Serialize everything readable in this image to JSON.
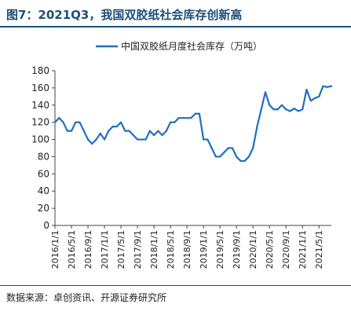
{
  "figure": {
    "title": "图7：2021Q3，我国双胶纸社会库存创新高",
    "source": "数据来源：卓创资讯、开源证券研究所"
  },
  "colors": {
    "line": "#1f6fbf",
    "accent": "#1f4e79"
  },
  "chart_data": {
    "type": "line",
    "title": "",
    "xlabel": "",
    "ylabel": "",
    "ylim": [
      0,
      180
    ],
    "yticks": [
      0,
      20,
      40,
      60,
      80,
      100,
      120,
      140,
      160,
      180
    ],
    "grid": false,
    "legend_position": "top",
    "x_tick_labels": [
      "2016/1/1",
      "2016/5/1",
      "2016/9/1",
      "2017/1/1",
      "2017/5/1",
      "2017/9/1",
      "2018/1/1",
      "2018/5/1",
      "2018/9/1",
      "2019/1/1",
      "2019/5/1",
      "2019/9/1",
      "2020/1/1",
      "2020/5/1",
      "2020/9/1",
      "2021/1/1",
      "2021/5/1"
    ],
    "series": [
      {
        "name": "中国双胶纸月度社会库存（万吨）",
        "values": [
          120,
          125,
          120,
          110,
          110,
          120,
          120,
          110,
          100,
          95,
          100,
          107,
          100,
          110,
          115,
          115,
          120,
          110,
          110,
          105,
          100,
          100,
          100,
          110,
          105,
          110,
          105,
          110,
          120,
          120,
          125,
          125,
          125,
          125,
          130,
          130,
          100,
          100,
          90,
          80,
          80,
          85,
          90,
          90,
          80,
          75,
          75,
          80,
          90,
          115,
          135,
          155,
          140,
          135,
          135,
          140,
          135,
          133,
          136,
          133,
          135,
          158,
          145,
          148,
          150,
          162,
          161,
          162
        ]
      }
    ]
  }
}
